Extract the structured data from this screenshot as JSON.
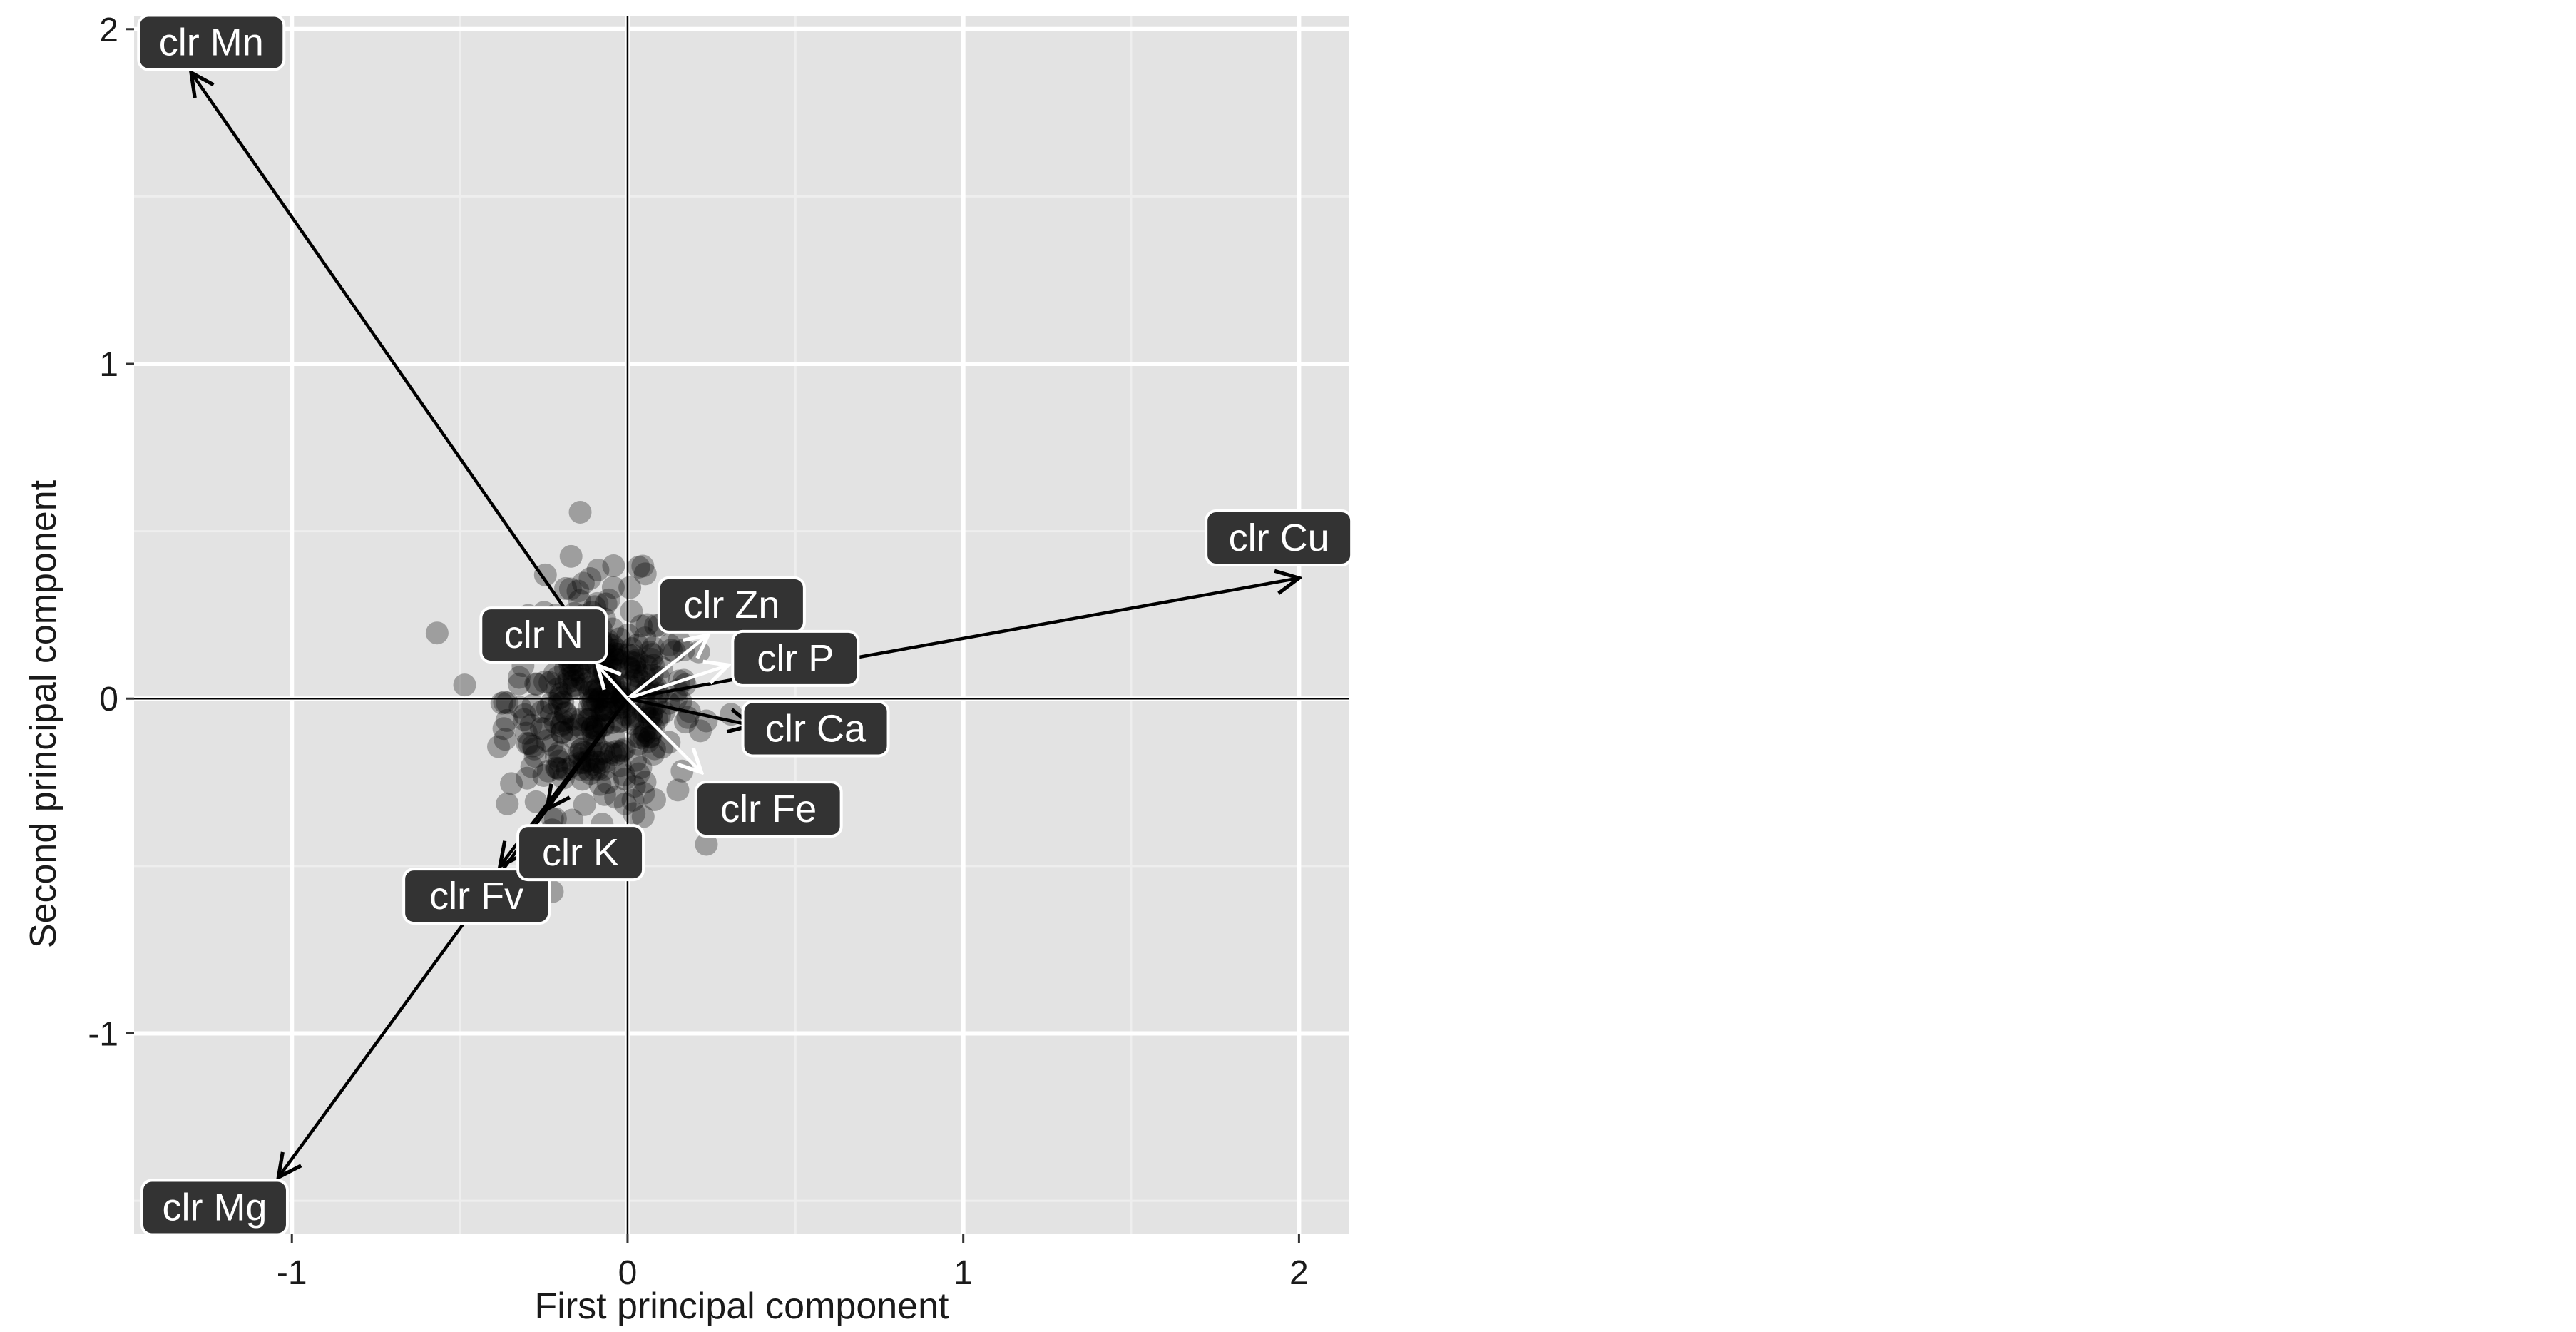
{
  "chart_data": {
    "type": "scatter",
    "title": "",
    "xlabel": "First principal component",
    "ylabel": "Second principal component",
    "xlim": [
      -1.47,
      2.15
    ],
    "ylim": [
      -1.6,
      2.04
    ],
    "x_ticks": [
      -1,
      0,
      1,
      2
    ],
    "y_ticks": [
      -1,
      0,
      1,
      2
    ],
    "x_tick_labels": [
      "-1",
      "0",
      "1",
      "2"
    ],
    "y_tick_labels": [
      "-1",
      "0",
      "1",
      "2"
    ],
    "grid": true,
    "reference_lines": {
      "x": 0,
      "y": 0
    },
    "colors": {
      "panel": "#e3e3e3",
      "grid": "#ffffff",
      "points": "#000000",
      "arrow_dark": "#000000",
      "arrow_light": "#ffffff",
      "label_box": "#333333",
      "label_text": "#ffffff"
    },
    "loadings": [
      {
        "label": "clr Mn",
        "x": -1.3,
        "y": 1.87,
        "arrow_color": "dark"
      },
      {
        "label": "clr Cu",
        "x": 2.0,
        "y": 0.36,
        "arrow_color": "dark"
      },
      {
        "label": "clr Mg",
        "x": -1.04,
        "y": -1.43,
        "arrow_color": "dark"
      },
      {
        "label": "clr Fv",
        "x": -0.38,
        "y": -0.5,
        "arrow_color": "dark"
      },
      {
        "label": "clr K",
        "x": -0.24,
        "y": -0.33,
        "arrow_color": "dark"
      },
      {
        "label": "clr N",
        "x": -0.09,
        "y": 0.1,
        "arrow_color": "light"
      },
      {
        "label": "clr Zn",
        "x": 0.24,
        "y": 0.19,
        "arrow_color": "light"
      },
      {
        "label": "clr P",
        "x": 0.3,
        "y": 0.1,
        "arrow_color": "light"
      },
      {
        "label": "clr Ca",
        "x": 0.37,
        "y": -0.08,
        "arrow_color": "dark"
      },
      {
        "label": "clr Fe",
        "x": 0.22,
        "y": -0.22,
        "arrow_color": "light"
      }
    ],
    "loading_label_positions": [
      {
        "label": "clr Mn",
        "x": -1.24,
        "y": 1.96
      },
      {
        "label": "clr Cu",
        "x": 1.94,
        "y": 0.48
      },
      {
        "label": "clr Mg",
        "x": -1.23,
        "y": -1.52
      },
      {
        "label": "clr Fv",
        "x": -0.45,
        "y": -0.59
      },
      {
        "label": "clr K",
        "x": -0.14,
        "y": -0.46
      },
      {
        "label": "clr N",
        "x": -0.25,
        "y": 0.19
      },
      {
        "label": "clr Zn",
        "x": 0.31,
        "y": 0.28
      },
      {
        "label": "clr P",
        "x": 0.5,
        "y": 0.12
      },
      {
        "label": "clr Ca",
        "x": 0.56,
        "y": -0.09
      },
      {
        "label": "clr Fe",
        "x": 0.42,
        "y": -0.33
      }
    ],
    "point_cloud": {
      "count": 400,
      "x_mean": -0.08,
      "x_sd": 0.14,
      "y_mean": 0.0,
      "y_sd": 0.17,
      "opacity": 0.3
    }
  }
}
